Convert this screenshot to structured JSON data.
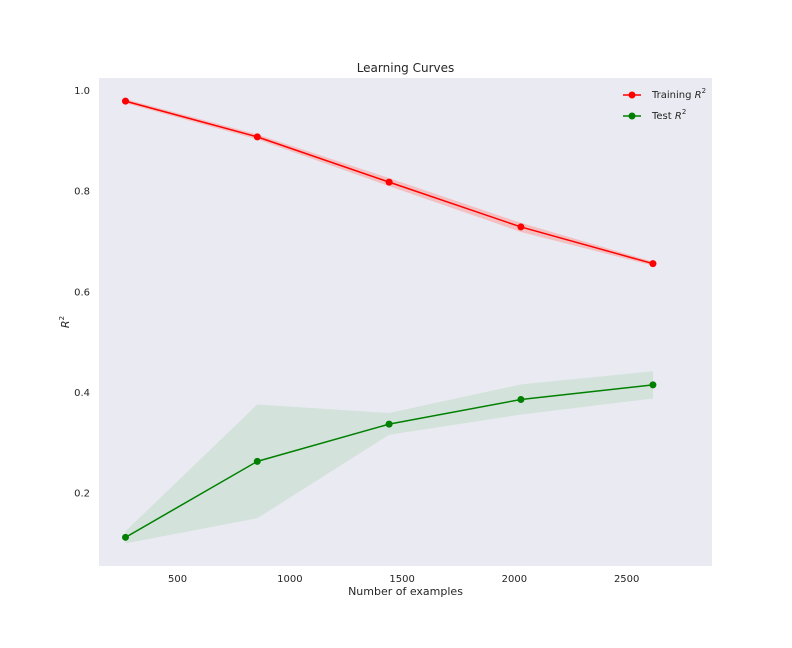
{
  "chart_data": {
    "type": "line",
    "title": "Learning Curves",
    "xlabel": "Number of examples",
    "ylabel_base": "R",
    "ylabel_sup": "2",
    "xlim": [
      150,
      2880
    ],
    "ylim": [
      0.055,
      1.025
    ],
    "x_ticks": [
      500,
      1000,
      1500,
      2000,
      2500
    ],
    "y_ticks": [
      0.2,
      0.4,
      0.6,
      0.8,
      1.0
    ],
    "x_tick_labels": [
      "500",
      "1000",
      "1500",
      "2000",
      "2500"
    ],
    "y_tick_labels": [
      "0.2",
      "0.4",
      "0.6",
      "0.8",
      "1.0"
    ],
    "grid": false,
    "legend_position": "top-right",
    "background": "#eaeaf2",
    "series": [
      {
        "name_base": "Training ",
        "name_sup": "2",
        "name_italic": "R",
        "color": "#ff0000",
        "band_color": "#f5b8b8",
        "x": [
          268,
          855,
          1442,
          2029,
          2617
        ],
        "y": [
          0.979,
          0.908,
          0.818,
          0.729,
          0.656
        ],
        "lower": [
          0.975,
          0.903,
          0.81,
          0.719,
          0.652
        ],
        "upper": [
          0.983,
          0.913,
          0.826,
          0.737,
          0.66
        ]
      },
      {
        "name_base": "Test ",
        "name_sup": "2",
        "name_italic": "R",
        "color": "#008000",
        "band_color": "#cfe0d6",
        "x": [
          268,
          855,
          1442,
          2029,
          2617
        ],
        "y": [
          0.112,
          0.263,
          0.337,
          0.386,
          0.415
        ],
        "lower": [
          0.1,
          0.15,
          0.316,
          0.356,
          0.388
        ],
        "upper": [
          0.124,
          0.376,
          0.359,
          0.416,
          0.442
        ]
      }
    ]
  }
}
